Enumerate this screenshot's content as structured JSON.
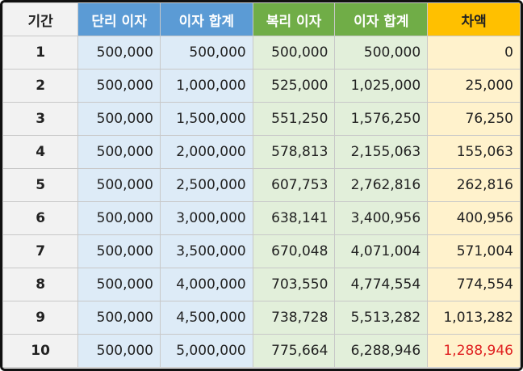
{
  "headers": {
    "period": "기간",
    "simple_interest": "단리 이자",
    "simple_total": "이자 합계",
    "compound_interest": "복리 이자",
    "compound_total": "이자 합계",
    "difference": "차액"
  },
  "rows": [
    {
      "period": "1",
      "simple_interest": "500,000",
      "simple_total": "500,000",
      "compound_interest": "500,000",
      "compound_total": "500,000",
      "difference": "0"
    },
    {
      "period": "2",
      "simple_interest": "500,000",
      "simple_total": "1,000,000",
      "compound_interest": "525,000",
      "compound_total": "1,025,000",
      "difference": "25,000"
    },
    {
      "period": "3",
      "simple_interest": "500,000",
      "simple_total": "1,500,000",
      "compound_interest": "551,250",
      "compound_total": "1,576,250",
      "difference": "76,250"
    },
    {
      "period": "4",
      "simple_interest": "500,000",
      "simple_total": "2,000,000",
      "compound_interest": "578,813",
      "compound_total": "2,155,063",
      "difference": "155,063"
    },
    {
      "period": "5",
      "simple_interest": "500,000",
      "simple_total": "2,500,000",
      "compound_interest": "607,753",
      "compound_total": "2,762,816",
      "difference": "262,816"
    },
    {
      "period": "6",
      "simple_interest": "500,000",
      "simple_total": "3,000,000",
      "compound_interest": "638,141",
      "compound_total": "3,400,956",
      "difference": "400,956"
    },
    {
      "period": "7",
      "simple_interest": "500,000",
      "simple_total": "3,500,000",
      "compound_interest": "670,048",
      "compound_total": "4,071,004",
      "difference": "571,004"
    },
    {
      "period": "8",
      "simple_interest": "500,000",
      "simple_total": "4,000,000",
      "compound_interest": "703,550",
      "compound_total": "4,774,554",
      "difference": "774,554"
    },
    {
      "period": "9",
      "simple_interest": "500,000",
      "simple_total": "4,500,000",
      "compound_interest": "738,728",
      "compound_total": "5,513,282",
      "difference": "1,013,282"
    },
    {
      "period": "10",
      "simple_interest": "500,000",
      "simple_total": "5,000,000",
      "compound_interest": "775,664",
      "compound_total": "6,288,946",
      "difference": "1,288,946"
    }
  ],
  "colors": {
    "simple_header": "#5b9bd5",
    "compound_header": "#70ad47",
    "difference_header": "#ffc000",
    "highlight_text": "#e02020"
  }
}
